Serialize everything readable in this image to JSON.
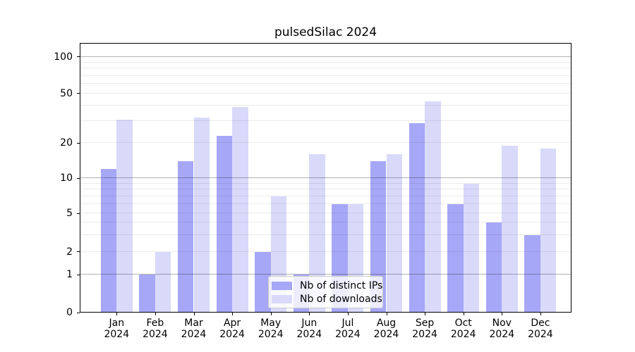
{
  "page": {
    "background": "#ffffff"
  },
  "chart_data": {
    "type": "bar",
    "title": "pulsedSilac 2024",
    "categories": [
      "Jan",
      "Feb",
      "Mar",
      "Apr",
      "May",
      "Jun",
      "Jul",
      "Aug",
      "Sep",
      "Oct",
      "Nov",
      "Dec"
    ],
    "x_tick_year": "2024",
    "series": [
      {
        "name": "Nb of distinct IPs",
        "color": "#a7a7f7",
        "values": [
          12,
          1,
          14,
          23,
          2,
          1,
          6,
          14,
          29,
          6,
          4,
          3
        ]
      },
      {
        "name": "Nb of downloads",
        "color": "#d9d9fa",
        "values": [
          31,
          2,
          32,
          39,
          7,
          16,
          6,
          16,
          43,
          9,
          19,
          18
        ]
      }
    ],
    "yscale": "log (zero drawn at axis base)",
    "ylim": [
      0,
      130
    ],
    "y_tick_values": [
      0,
      1,
      2,
      5,
      10,
      20,
      50,
      100
    ],
    "y_tick_labels": [
      "0",
      "1",
      "2",
      "5",
      "10",
      "20",
      "50",
      "100"
    ],
    "y_major_gridlines": [
      1,
      10,
      100
    ],
    "y_minor_gridlines": [
      2,
      3,
      4,
      5,
      6,
      7,
      8,
      9,
      20,
      30,
      40,
      50,
      60,
      70,
      80,
      90
    ],
    "grid": true,
    "legend_position": "lower center",
    "legend_items": [
      "Nb of distinct IPs",
      "Nb of downloads"
    ]
  },
  "colors": {
    "bar_distinct_ips": "#a7a7f7",
    "bar_downloads": "#d9d9fa",
    "major_gridline": "rgba(0,0,0,0.30)",
    "minor_gridline": "rgba(0,0,0,0.08)",
    "axis_line": "#000000",
    "text": "#000000",
    "legend_border": "#cccccc",
    "legend_background": "rgba(255,255,255,0.8)"
  }
}
